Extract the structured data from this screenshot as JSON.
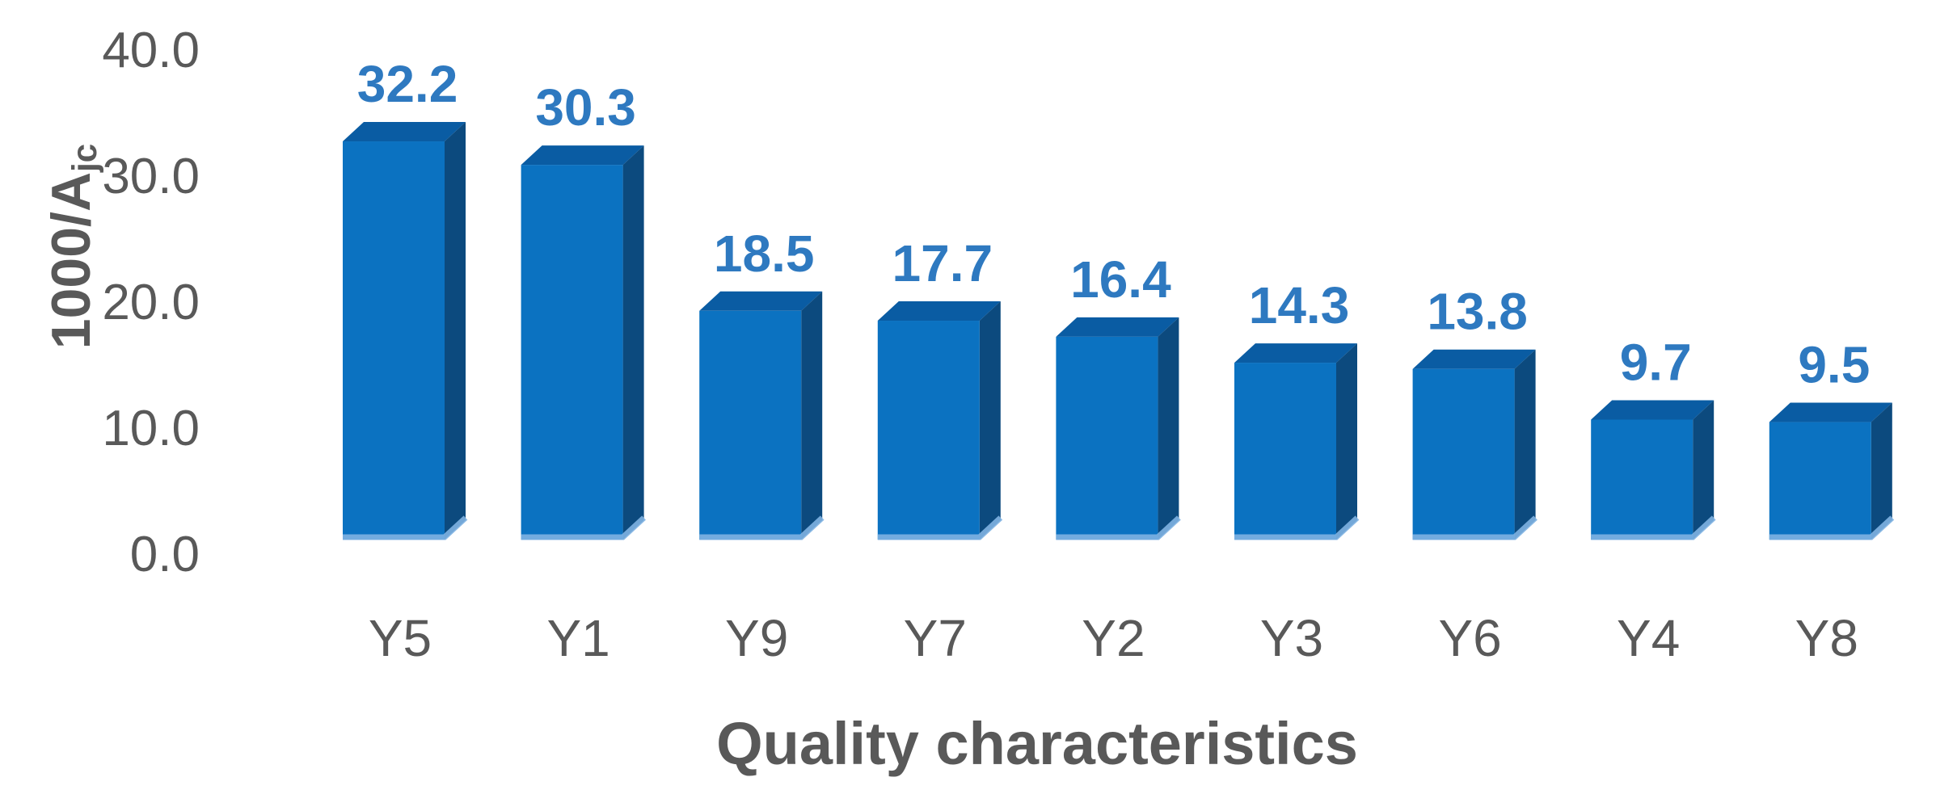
{
  "chart_data": {
    "type": "bar",
    "style": "3d-column",
    "title": "",
    "xlabel": "Quality characteristics",
    "ylabel": "1000/Ajc",
    "ylabel_main": "1000/A",
    "ylabel_sub": "jc",
    "categories": [
      "Y5",
      "Y1",
      "Y9",
      "Y7",
      "Y2",
      "Y3",
      "Y6",
      "Y4",
      "Y8"
    ],
    "values": [
      32.2,
      30.3,
      18.5,
      17.7,
      16.4,
      14.3,
      13.8,
      9.7,
      9.5
    ],
    "data_labels": [
      "32.2",
      "30.3",
      "18.5",
      "17.7",
      "16.4",
      "14.3",
      "13.8",
      "9.7",
      "9.5"
    ],
    "y_ticks": [
      0,
      10,
      20,
      30,
      40
    ],
    "y_tick_labels": [
      "0.0",
      "10.0",
      "20.0",
      "30.0",
      "40.0"
    ],
    "ylim": [
      0,
      40
    ],
    "grid": false,
    "legend": false,
    "colors": {
      "bar_front": "#0b72c1",
      "bar_top": "#0a5ca3",
      "bar_side": "#0c4a7e",
      "bar_bottom_edge": "#7fb2e2",
      "data_label": "#2e79c0",
      "axis_text": "#595959"
    }
  }
}
